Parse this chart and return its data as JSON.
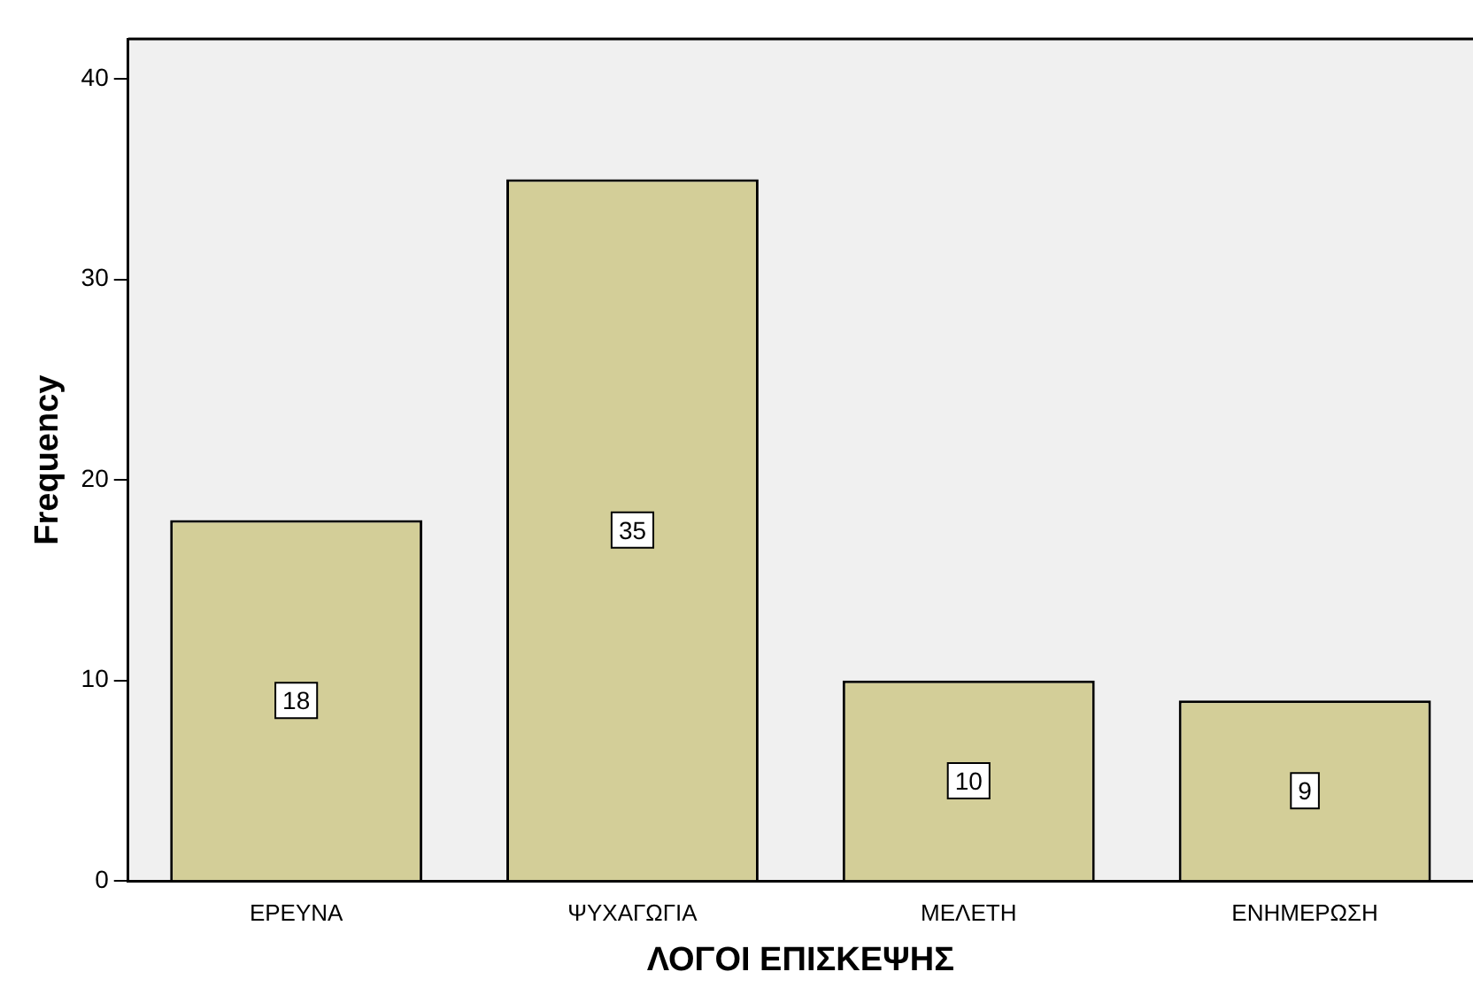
{
  "chart_data": {
    "type": "bar",
    "xlabel": "ΛΟΓΟΙ ΕΠΙΣΚΕΨΗΣ",
    "ylabel": "Frequency",
    "categories": [
      "ΕΡΕΥΝΑ",
      "ΨΥΧΑΓΩΓΙΑ",
      "ΜΕΛΕΤΗ",
      "ΕΝΗΜΕΡΩΣΗ"
    ],
    "values": [
      18,
      35,
      10,
      9
    ],
    "color": "#d3ce98",
    "ylim": [
      0,
      42
    ],
    "yticks": [
      0,
      10,
      20,
      30,
      40
    ],
    "grid": false,
    "legend": false,
    "data_labels": true
  }
}
